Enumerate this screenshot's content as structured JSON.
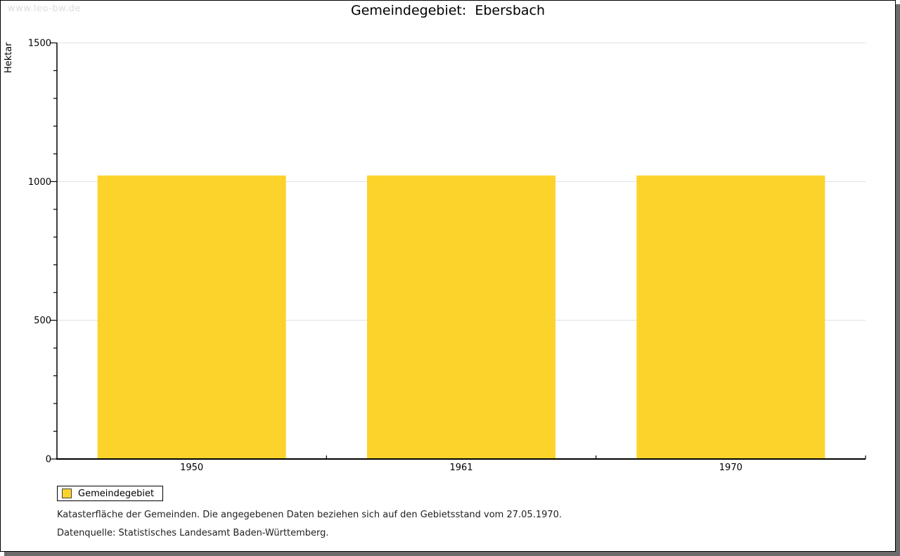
{
  "watermark": "www.leo-bw.de",
  "chart_data": {
    "type": "bar",
    "title": "Gemeindegebiet:  Ebersbach",
    "ylabel": "Hektar",
    "categories": [
      "1950",
      "1961",
      "1970"
    ],
    "series": [
      {
        "name": "Gemeindegebiet",
        "values": [
          1022,
          1022,
          1022
        ],
        "color": "#fcd32b"
      }
    ],
    "ylim": [
      0,
      1500
    ],
    "y_major_ticks": [
      0,
      500,
      1000,
      1500
    ],
    "y_minor_step": 100,
    "grid": "horizontal-major",
    "legend_position": "bottom-left"
  },
  "legend": {
    "label": "Gemeindegebiet"
  },
  "footnotes": [
    "Katasterfläche der Gemeinden. Die angegebenen Daten beziehen sich auf den Gebietsstand vom 27.05.1970.",
    "Datenquelle: Statistisches Landesamt Baden-Württemberg."
  ],
  "colors": {
    "bar": "#fcd32b",
    "gridline": "#e0e0e0",
    "axis": "#000000",
    "swatch_border": "#444444",
    "shadow": "#6b6b6b",
    "watermark": "#dddddd"
  }
}
